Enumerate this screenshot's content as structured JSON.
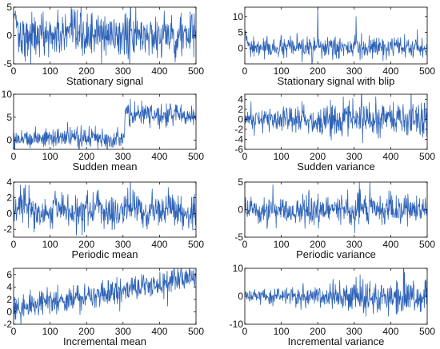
{
  "chart_data": [
    {
      "type": "line",
      "xlabel": "Stationary signal",
      "xlim": [
        0,
        500
      ],
      "ylim": [
        -5,
        5
      ],
      "xticks": [
        0,
        100,
        200,
        300,
        400,
        500
      ],
      "yticks": [
        -5,
        0,
        5
      ],
      "series": [
        {
          "kind": "noise",
          "mean": 0,
          "std": 2.0,
          "start_peak": 4.5
        }
      ],
      "color": "#2e63b8"
    },
    {
      "type": "line",
      "xlabel": "Stationary signal with blip",
      "xlim": [
        0,
        500
      ],
      "ylim": [
        -5,
        13
      ],
      "xticks": [
        0,
        100,
        200,
        300,
        400,
        500
      ],
      "yticks": [
        0,
        5,
        10
      ],
      "series": [
        {
          "kind": "noise",
          "mean": 0,
          "std": 1.6,
          "start_peak": 5,
          "spikes": [
            [
              200,
              13
            ],
            [
              305,
              10
            ]
          ]
        }
      ],
      "color": "#2e63b8"
    },
    {
      "type": "line",
      "xlabel": "Sudden mean",
      "xlim": [
        0,
        500
      ],
      "ylim": [
        -2,
        10
      ],
      "xticks": [
        0,
        100,
        200,
        300,
        400,
        500
      ],
      "yticks": [
        0,
        5,
        10
      ],
      "series": [
        {
          "kind": "step_mean",
          "before": 0.5,
          "after": 5.5,
          "change_at": 305,
          "std": 1.1
        }
      ],
      "color": "#2e63b8"
    },
    {
      "type": "line",
      "xlabel": "Sudden variance",
      "xlim": [
        0,
        500
      ],
      "ylim": [
        -6,
        5
      ],
      "xticks": [
        0,
        100,
        200,
        300,
        400,
        500
      ],
      "yticks": [
        -6,
        -4,
        -2,
        0,
        2,
        4
      ],
      "series": [
        {
          "kind": "step_variance",
          "mean": 0,
          "std_before": 1.2,
          "std_after": 2.0,
          "change_at": 200
        }
      ],
      "color": "#2e63b8"
    },
    {
      "type": "line",
      "xlabel": "Periodic mean",
      "xlim": [
        0,
        500
      ],
      "ylim": [
        -3,
        4
      ],
      "xticks": [
        0,
        100,
        200,
        300,
        400,
        500
      ],
      "yticks": [
        -2,
        0,
        2,
        4
      ],
      "series": [
        {
          "kind": "periodic_mean",
          "mean": 0.3,
          "amplitude": 0.6,
          "period": 100,
          "std": 1.1
        }
      ],
      "color": "#2e63b8"
    },
    {
      "type": "line",
      "xlabel": "Periodic variance",
      "xlim": [
        0,
        500
      ],
      "ylim": [
        -5,
        5
      ],
      "xticks": [
        0,
        100,
        200,
        300,
        400,
        500
      ],
      "yticks": [
        -5,
        0,
        5
      ],
      "series": [
        {
          "kind": "periodic_variance",
          "mean": 0,
          "std_base": 1.0,
          "std_amplitude": 0.6,
          "period": 120
        }
      ],
      "color": "#2e63b8"
    },
    {
      "type": "line",
      "xlabel": "Incremental mean",
      "xlim": [
        0,
        500
      ],
      "ylim": [
        -2,
        7
      ],
      "xticks": [
        0,
        100,
        200,
        300,
        400,
        500
      ],
      "yticks": [
        -2,
        0,
        2,
        4,
        6
      ],
      "series": [
        {
          "kind": "trend_mean",
          "start": 0.5,
          "end": 5.5,
          "std": 1.1
        }
      ],
      "color": "#2e63b8"
    },
    {
      "type": "line",
      "xlabel": "Incremental variance",
      "xlim": [
        0,
        500
      ],
      "ylim": [
        -10,
        10
      ],
      "xticks": [
        0,
        100,
        200,
        300,
        400,
        500
      ],
      "yticks": [
        -10,
        0,
        10
      ],
      "series": [
        {
          "kind": "trend_variance",
          "mean": 0,
          "std_start": 1.0,
          "std_end": 3.5
        }
      ],
      "color": "#2e63b8"
    }
  ]
}
